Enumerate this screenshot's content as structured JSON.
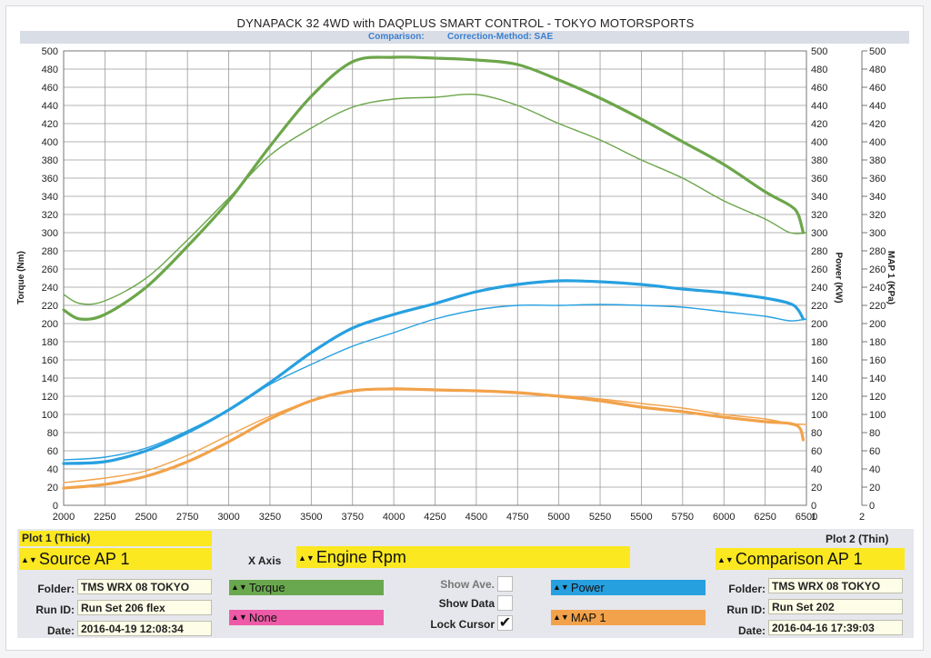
{
  "header": {
    "title": "DYNAPACK 32 4WD with DAQPLUS SMART CONTROL - TOKYO MOTORSPORTS",
    "comparison_label": "Comparison:",
    "correction_label": "Correction-Method: SAE"
  },
  "colors": {
    "torque": "#6ca64a",
    "power": "#27a0e0",
    "map": "#f2a24a",
    "grid": "#9a9a9a",
    "panel_yellow": "#fbe820",
    "torque_field": "#6aa84f",
    "none_field": "#ee5aa7",
    "power_field": "#27a0e0",
    "map_field": "#f2a24a"
  },
  "chart_data": {
    "type": "line",
    "title": "DYNAPACK 32 4WD with DAQPLUS SMART CONTROL - TOKYO MOTORSPORTS",
    "xlabel": "Engine Rpm",
    "ylabel_left": "Torque (Nm)",
    "ylabel_right1": "Power (KW)",
    "ylabel_right2": "MAP 1 (KPa)",
    "xlim": [
      2000,
      6500
    ],
    "ylim": [
      0,
      500
    ],
    "y2lim": [
      0,
      500
    ],
    "xticks": [
      2000,
      2250,
      2500,
      2750,
      3000,
      3250,
      3500,
      3750,
      4000,
      4250,
      4500,
      4750,
      5000,
      5250,
      5500,
      5750,
      6000,
      6250,
      6500
    ],
    "yticks": [
      0,
      20,
      40,
      60,
      80,
      100,
      120,
      140,
      160,
      180,
      200,
      220,
      240,
      260,
      280,
      300,
      320,
      340,
      360,
      380,
      400,
      420,
      440,
      460,
      480,
      500
    ],
    "x_end_labels": [
      "1",
      "2"
    ],
    "grid": true,
    "series": [
      {
        "name": "Torque (Plot 1, thick)",
        "kind": "torque",
        "thick": true,
        "x": [
          2000,
          2100,
          2250,
          2500,
          2750,
          3000,
          3250,
          3500,
          3750,
          4000,
          4250,
          4500,
          4750,
          5000,
          5250,
          5500,
          5750,
          6000,
          6250,
          6400,
          6450,
          6480
        ],
        "y": [
          215,
          205,
          210,
          240,
          285,
          335,
          395,
          450,
          488,
          493,
          492,
          490,
          485,
          468,
          448,
          425,
          400,
          375,
          345,
          330,
          320,
          300
        ]
      },
      {
        "name": "Torque (Plot 2, thin)",
        "kind": "torque",
        "thick": false,
        "x": [
          2000,
          2100,
          2250,
          2500,
          2750,
          3000,
          3250,
          3500,
          3750,
          4000,
          4250,
          4500,
          4750,
          5000,
          5250,
          5500,
          5750,
          6000,
          6250,
          6400,
          6500
        ],
        "y": [
          232,
          222,
          225,
          250,
          292,
          338,
          385,
          415,
          438,
          447,
          449,
          452,
          440,
          420,
          402,
          380,
          360,
          335,
          315,
          300,
          300
        ]
      },
      {
        "name": "Power (Plot 1, thick)",
        "kind": "power",
        "thick": true,
        "x": [
          2000,
          2250,
          2500,
          2750,
          3000,
          3250,
          3500,
          3750,
          4000,
          4250,
          4500,
          4750,
          5000,
          5250,
          5500,
          5750,
          6000,
          6250,
          6400,
          6450,
          6480
        ],
        "y": [
          46,
          48,
          60,
          80,
          105,
          135,
          168,
          195,
          210,
          222,
          235,
          243,
          247,
          246,
          243,
          238,
          234,
          228,
          222,
          215,
          205
        ]
      },
      {
        "name": "Power (Plot 2, thin)",
        "kind": "power",
        "thick": false,
        "x": [
          2000,
          2250,
          2500,
          2750,
          3000,
          3250,
          3500,
          3750,
          4000,
          4250,
          4500,
          4750,
          5000,
          5250,
          5500,
          5750,
          6000,
          6250,
          6400,
          6500
        ],
        "y": [
          50,
          53,
          63,
          82,
          105,
          133,
          155,
          175,
          190,
          205,
          215,
          220,
          220,
          221,
          220,
          218,
          213,
          208,
          203,
          205
        ]
      },
      {
        "name": "MAP 1 (Plot 1, thick)",
        "kind": "map",
        "thick": true,
        "x": [
          2000,
          2250,
          2500,
          2750,
          3000,
          3250,
          3500,
          3750,
          4000,
          4250,
          4500,
          4750,
          5000,
          5250,
          5500,
          5750,
          6000,
          6250,
          6400,
          6460,
          6480
        ],
        "y": [
          19,
          23,
          32,
          48,
          70,
          95,
          115,
          126,
          128,
          127,
          126,
          124,
          120,
          115,
          108,
          103,
          97,
          92,
          90,
          85,
          72
        ]
      },
      {
        "name": "MAP 1 (Plot 2, thin)",
        "kind": "map",
        "thick": false,
        "x": [
          2000,
          2250,
          2500,
          2750,
          3000,
          3250,
          3500,
          3750,
          4000,
          4250,
          4500,
          4750,
          5000,
          5250,
          5500,
          5750,
          6000,
          6250,
          6400,
          6500
        ],
        "y": [
          25,
          30,
          38,
          55,
          77,
          98,
          115,
          125,
          129,
          127,
          126,
          123,
          121,
          117,
          112,
          107,
          100,
          95,
          90,
          89
        ]
      }
    ]
  },
  "panel": {
    "plot1_title": "Plot 1 (Thick)",
    "plot1_source": "Source AP 1",
    "xaxis_label": "X Axis",
    "xaxis_value": "Engine Rpm",
    "plot2_title": "Plot 2 (Thin)",
    "plot2_source": "Comparison AP 1",
    "folder_label": "Folder:",
    "runid_label": "Run ID:",
    "date_label": "Date:",
    "plot1_folder": "TMS WRX 08 TOKYO",
    "plot1_runid": "Run Set 206 flex",
    "plot1_date": "2016-04-19 12:08:34",
    "plot2_folder": "TMS WRX 08 TOKYO",
    "plot2_runid": "Run Set 202",
    "plot2_date": "2016-04-16 17:39:03",
    "channel1": "Torque",
    "channel2": "None",
    "channel3": "Power",
    "channel4": "MAP 1",
    "show_ave_label": "Show Ave.",
    "show_data_label": "Show Data",
    "lock_cursor_label": "Lock Cursor",
    "lock_cursor_mark": "✔"
  }
}
